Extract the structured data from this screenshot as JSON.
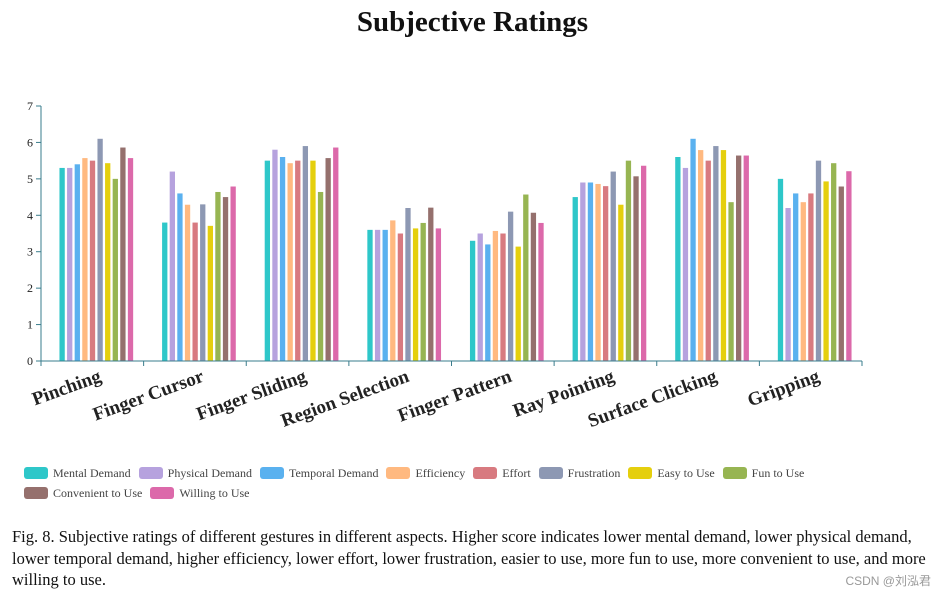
{
  "chart_data": {
    "type": "bar",
    "title": "Subjective Ratings",
    "xlabel": "",
    "ylabel": "",
    "ylim": [
      0,
      7
    ],
    "yticks": [
      "0",
      "1",
      "2",
      "3",
      "4",
      "5",
      "6",
      "7"
    ],
    "legend_position": "bottom",
    "categories": [
      "Pinching",
      "Finger Cursor",
      "Finger Sliding",
      "Region Selection",
      "Finger Pattern",
      "Ray Pointing",
      "Surface Clicking",
      "Gripping"
    ],
    "series": [
      {
        "name": "Mental Demand",
        "color": "#2ec7c9",
        "values": [
          5.3,
          3.8,
          5.5,
          3.6,
          3.3,
          4.5,
          5.6,
          5.0
        ]
      },
      {
        "name": "Physical Demand",
        "color": "#b6a2de",
        "values": [
          5.3,
          5.2,
          5.8,
          3.6,
          3.5,
          4.9,
          5.3,
          4.2
        ]
      },
      {
        "name": "Temporal Demand",
        "color": "#5ab1ef",
        "values": [
          5.4,
          4.6,
          5.6,
          3.6,
          3.2,
          4.9,
          6.1,
          4.6
        ]
      },
      {
        "name": "Efficiency",
        "color": "#ffb980",
        "values": [
          5.57,
          4.29,
          5.43,
          3.86,
          3.57,
          4.86,
          5.79,
          4.36
        ]
      },
      {
        "name": "Effort",
        "color": "#d87a80",
        "values": [
          5.5,
          3.8,
          5.5,
          3.5,
          3.5,
          4.8,
          5.5,
          4.6
        ]
      },
      {
        "name": "Frustration",
        "color": "#8d98b3",
        "values": [
          6.1,
          4.3,
          5.9,
          4.2,
          4.1,
          5.2,
          5.9,
          5.5
        ]
      },
      {
        "name": "Easy to Use",
        "color": "#e5cf0d",
        "values": [
          5.43,
          3.71,
          5.5,
          3.64,
          3.14,
          4.29,
          5.79,
          4.93
        ]
      },
      {
        "name": "Fun to Use",
        "color": "#97b552",
        "values": [
          5.0,
          4.64,
          4.64,
          3.79,
          4.57,
          5.5,
          4.36,
          5.43
        ]
      },
      {
        "name": "Convenient to Use",
        "color": "#95706d",
        "values": [
          5.86,
          4.5,
          5.57,
          4.21,
          4.07,
          5.07,
          5.64,
          4.79
        ]
      },
      {
        "name": "Willing to Use",
        "color": "#dc69aa",
        "values": [
          5.57,
          4.79,
          5.86,
          3.64,
          3.79,
          5.36,
          5.64,
          5.21
        ]
      }
    ]
  },
  "caption": "Fig. 8.  Subjective ratings of different gestures in different aspects. Higher score indicates lower mental demand, lower physical demand, lower temporal demand, higher efficiency, lower effort, lower frustration, easier to use, more fun to use, more convenient to use, and more willing to use.",
  "watermark": "CSDN @刘泓君"
}
